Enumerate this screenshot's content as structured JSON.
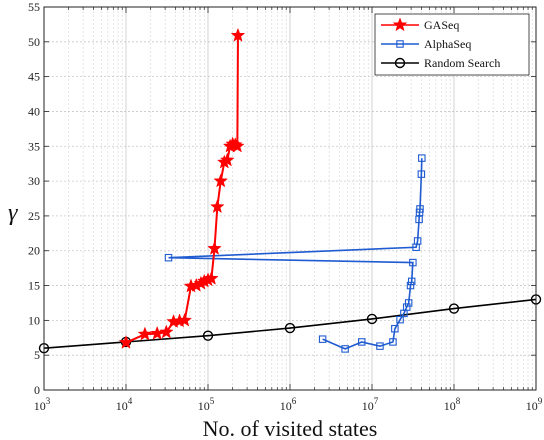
{
  "chart_data": {
    "type": "line",
    "xlabel": "No. of visited states",
    "ylabel": "γ",
    "x_scale": "log",
    "xlim": [
      1000,
      1000000000
    ],
    "ylim": [
      0,
      55
    ],
    "y_ticks": [
      0,
      5,
      10,
      15,
      20,
      25,
      30,
      35,
      40,
      45,
      50,
      55
    ],
    "x_tick_labels": [
      {
        "base": "10",
        "exp": "3",
        "value": 1000
      },
      {
        "base": "10",
        "exp": "4",
        "value": 10000
      },
      {
        "base": "10",
        "exp": "5",
        "value": 100000
      },
      {
        "base": "10",
        "exp": "6",
        "value": 1000000
      },
      {
        "base": "10",
        "exp": "7",
        "value": 10000000
      },
      {
        "base": "10",
        "exp": "8",
        "value": 100000000
      },
      {
        "base": "10",
        "exp": "9",
        "value": 1000000000
      }
    ],
    "grid": "on",
    "legend_position": "top-right",
    "series": [
      {
        "name": "GASeq",
        "color": "#ff0000",
        "marker": "star",
        "points": [
          [
            10000,
            6.8
          ],
          [
            17000,
            8.0
          ],
          [
            24000,
            8.1
          ],
          [
            31000,
            8.3
          ],
          [
            38000,
            9.8
          ],
          [
            45000,
            9.9
          ],
          [
            52000,
            10.0
          ],
          [
            62000,
            14.9
          ],
          [
            72000,
            15.0
          ],
          [
            82000,
            15.3
          ],
          [
            90000,
            15.6
          ],
          [
            100000,
            15.8
          ],
          [
            110000,
            16.0
          ],
          [
            120000,
            20.3
          ],
          [
            130000,
            26.3
          ],
          [
            143000,
            30.0
          ],
          [
            158000,
            32.7
          ],
          [
            172000,
            33.0
          ],
          [
            186000,
            35.0
          ],
          [
            200000,
            35.3
          ],
          [
            215000,
            35.2
          ],
          [
            228000,
            35.0
          ],
          [
            232000,
            50.9
          ]
        ]
      },
      {
        "name": "AlphaSeq",
        "color": "#1f5bd1",
        "marker": "square",
        "points": [
          [
            2500000,
            7.3
          ],
          [
            4700000,
            5.9
          ],
          [
            7500000,
            6.9
          ],
          [
            12500000,
            6.3
          ],
          [
            18000000,
            6.9
          ],
          [
            19000000,
            8.8
          ],
          [
            22000000,
            10.1
          ],
          [
            24500000,
            11.0
          ],
          [
            26500000,
            11.9
          ],
          [
            28000000,
            12.5
          ],
          [
            29500000,
            15.0
          ],
          [
            30500000,
            15.6
          ],
          [
            31500000,
            18.3
          ],
          [
            33000,
            19.0
          ],
          [
            34500000,
            20.5
          ],
          [
            36000000,
            21.4
          ],
          [
            37500000,
            24.5
          ],
          [
            38000000,
            25.5
          ],
          [
            38500000,
            26.0
          ],
          [
            40000000,
            31.0
          ],
          [
            40500000,
            33.3
          ]
        ]
      },
      {
        "name": "Random Search",
        "color": "#000000",
        "marker": "circle",
        "points": [
          [
            1000,
            6.0
          ],
          [
            10000,
            6.9
          ],
          [
            100000,
            7.8
          ],
          [
            1000000,
            8.9
          ],
          [
            10000000,
            10.2
          ],
          [
            100000000,
            11.7
          ],
          [
            1000000000,
            13.0
          ]
        ]
      }
    ]
  }
}
